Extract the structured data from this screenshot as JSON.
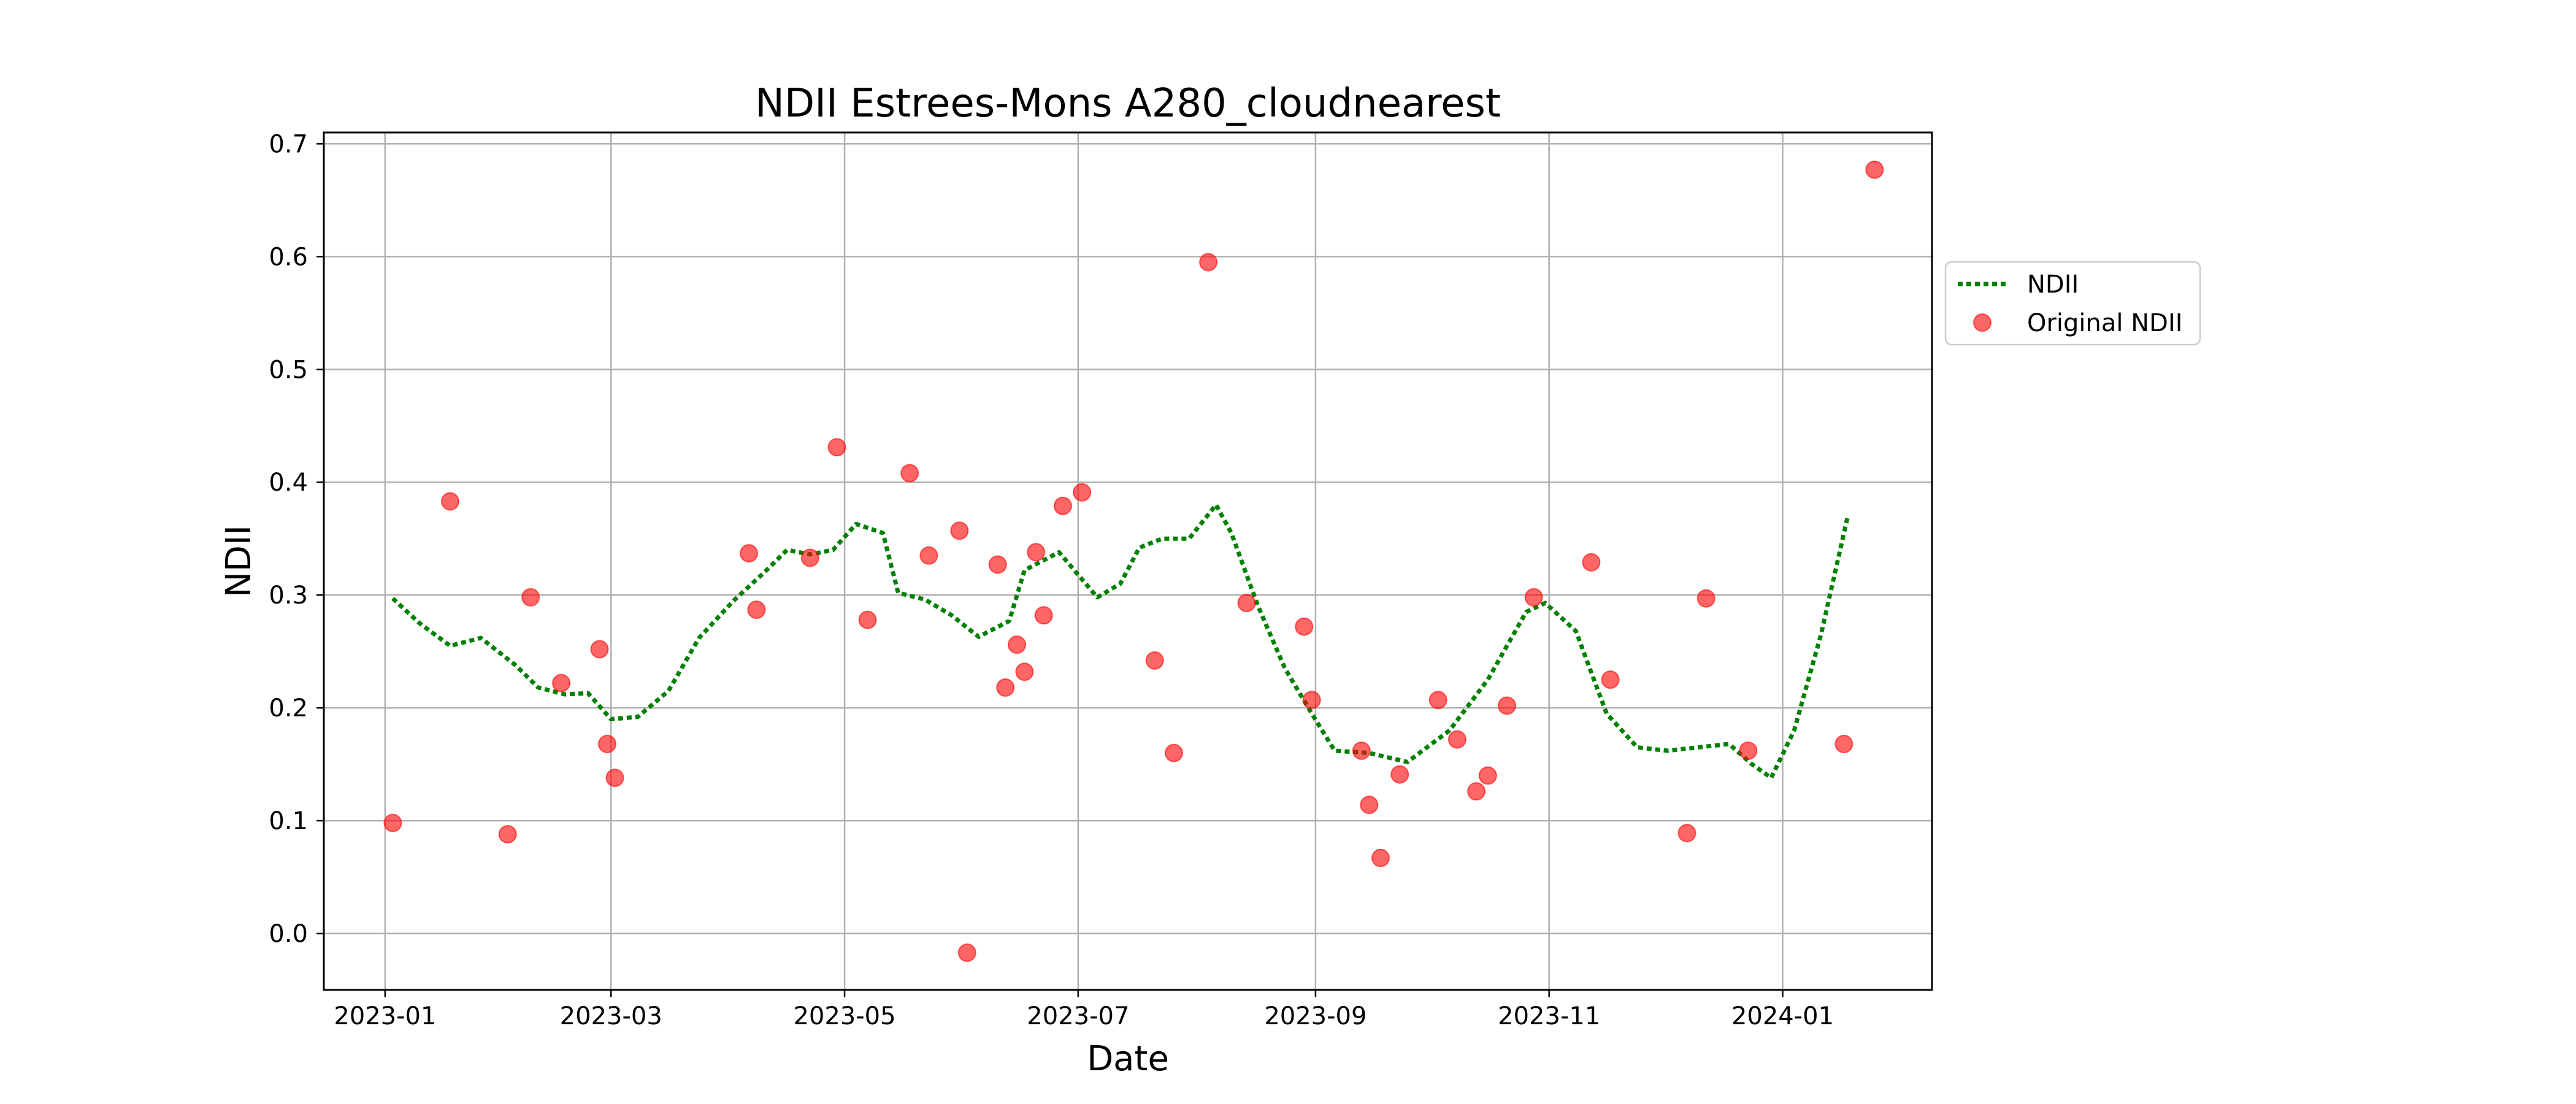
{
  "chart_data": {
    "type": "line",
    "title": "NDII Estrees-Mons A280_cloudnearest",
    "xlabel": "Date",
    "ylabel": "NDII",
    "xlim": [
      "2022-12-16",
      "2024-02-09"
    ],
    "ylim": [
      -0.05,
      0.71
    ],
    "grid": true,
    "legend_position": "outside-right-top",
    "x_ticks": [
      "2023-01",
      "2023-03",
      "2023-05",
      "2023-07",
      "2023-09",
      "2023-11",
      "2024-01"
    ],
    "y_ticks": [
      "0.0",
      "0.1",
      "0.2",
      "0.3",
      "0.4",
      "0.5",
      "0.6",
      "0.7"
    ],
    "series": [
      {
        "name": "NDII",
        "style": "dotted-line",
        "color": "#008000",
        "points": [
          [
            "2023-01-03",
            0.297
          ],
          [
            "2023-01-10",
            0.275
          ],
          [
            "2023-01-18",
            0.255
          ],
          [
            "2023-01-26",
            0.262
          ],
          [
            "2023-02-04",
            0.238
          ],
          [
            "2023-02-10",
            0.218
          ],
          [
            "2023-02-17",
            0.212
          ],
          [
            "2023-02-23",
            0.213
          ],
          [
            "2023-03-01",
            0.19
          ],
          [
            "2023-03-08",
            0.192
          ],
          [
            "2023-03-16",
            0.215
          ],
          [
            "2023-03-24",
            0.262
          ],
          [
            "2023-04-02",
            0.295
          ],
          [
            "2023-04-10",
            0.32
          ],
          [
            "2023-04-16",
            0.34
          ],
          [
            "2023-04-22",
            0.336
          ],
          [
            "2023-04-28",
            0.34
          ],
          [
            "2023-05-04",
            0.363
          ],
          [
            "2023-05-11",
            0.355
          ],
          [
            "2023-05-15",
            0.302
          ],
          [
            "2023-05-22",
            0.296
          ],
          [
            "2023-05-29",
            0.282
          ],
          [
            "2023-06-05",
            0.263
          ],
          [
            "2023-06-13",
            0.277
          ],
          [
            "2023-06-17",
            0.322
          ],
          [
            "2023-06-26",
            0.338
          ],
          [
            "2023-07-06",
            0.298
          ],
          [
            "2023-07-12",
            0.31
          ],
          [
            "2023-07-17",
            0.342
          ],
          [
            "2023-07-23",
            0.35
          ],
          [
            "2023-07-30",
            0.35
          ],
          [
            "2023-08-06",
            0.38
          ],
          [
            "2023-08-10",
            0.355
          ],
          [
            "2023-08-17",
            0.29
          ],
          [
            "2023-08-24",
            0.235
          ],
          [
            "2023-08-31",
            0.195
          ],
          [
            "2023-09-06",
            0.162
          ],
          [
            "2023-09-15",
            0.16
          ],
          [
            "2023-09-25",
            0.152
          ],
          [
            "2023-10-06",
            0.18
          ],
          [
            "2023-10-16",
            0.225
          ],
          [
            "2023-10-26",
            0.285
          ],
          [
            "2023-10-31",
            0.293
          ],
          [
            "2023-11-08",
            0.268
          ],
          [
            "2023-11-16",
            0.195
          ],
          [
            "2023-11-24",
            0.165
          ],
          [
            "2023-12-02",
            0.162
          ],
          [
            "2023-12-10",
            0.165
          ],
          [
            "2023-12-18",
            0.168
          ],
          [
            "2023-12-24",
            0.15
          ],
          [
            "2023-12-29",
            0.138
          ],
          [
            "2024-01-04",
            0.18
          ],
          [
            "2024-01-11",
            0.265
          ],
          [
            "2024-01-18",
            0.37
          ]
        ]
      },
      {
        "name": "Original NDII",
        "style": "scatter",
        "color": "#ff0000",
        "points": [
          [
            "2023-01-03",
            0.098
          ],
          [
            "2023-01-18",
            0.383
          ],
          [
            "2023-02-02",
            0.088
          ],
          [
            "2023-02-08",
            0.298
          ],
          [
            "2023-02-16",
            0.222
          ],
          [
            "2023-02-26",
            0.252
          ],
          [
            "2023-02-28",
            0.168
          ],
          [
            "2023-03-02",
            0.138
          ],
          [
            "2023-04-06",
            0.337
          ],
          [
            "2023-04-08",
            0.287
          ],
          [
            "2023-04-22",
            0.333
          ],
          [
            "2023-04-29",
            0.431
          ],
          [
            "2023-05-07",
            0.278
          ],
          [
            "2023-05-18",
            0.408
          ],
          [
            "2023-05-23",
            0.335
          ],
          [
            "2023-05-31",
            0.357
          ],
          [
            "2023-06-02",
            -0.017
          ],
          [
            "2023-06-10",
            0.327
          ],
          [
            "2023-06-12",
            0.218
          ],
          [
            "2023-06-15",
            0.256
          ],
          [
            "2023-06-17",
            0.232
          ],
          [
            "2023-06-20",
            0.338
          ],
          [
            "2023-06-22",
            0.282
          ],
          [
            "2023-06-27",
            0.379
          ],
          [
            "2023-07-02",
            0.391
          ],
          [
            "2023-07-21",
            0.242
          ],
          [
            "2023-07-26",
            0.16
          ],
          [
            "2023-08-04",
            0.595
          ],
          [
            "2023-08-14",
            0.293
          ],
          [
            "2023-08-29",
            0.272
          ],
          [
            "2023-08-31",
            0.207
          ],
          [
            "2023-09-13",
            0.162
          ],
          [
            "2023-09-15",
            0.114
          ],
          [
            "2023-09-18",
            0.067
          ],
          [
            "2023-09-23",
            0.141
          ],
          [
            "2023-10-03",
            0.207
          ],
          [
            "2023-10-08",
            0.172
          ],
          [
            "2023-10-13",
            0.126
          ],
          [
            "2023-10-16",
            0.14
          ],
          [
            "2023-10-21",
            0.202
          ],
          [
            "2023-10-28",
            0.298
          ],
          [
            "2023-11-12",
            0.329
          ],
          [
            "2023-11-17",
            0.225
          ],
          [
            "2023-12-07",
            0.089
          ],
          [
            "2023-12-12",
            0.297
          ],
          [
            "2023-12-23",
            0.162
          ],
          [
            "2024-01-17",
            0.168
          ],
          [
            "2024-01-25",
            0.677
          ]
        ]
      }
    ]
  }
}
